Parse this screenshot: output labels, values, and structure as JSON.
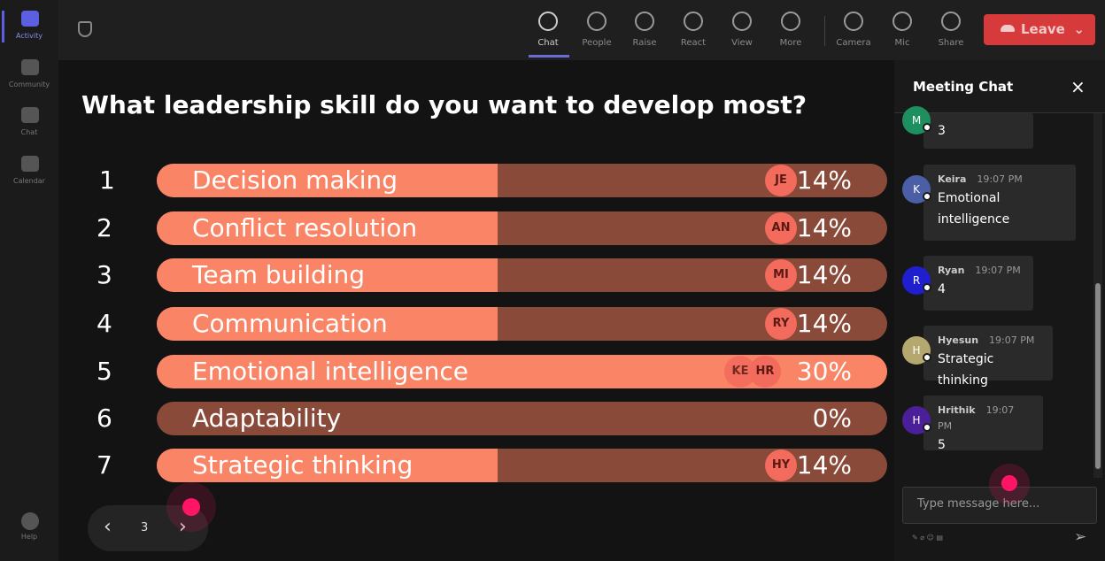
{
  "sidebar": {
    "items": [
      "Activity",
      "Community",
      "Chat",
      "Calendar"
    ],
    "help": "Help"
  },
  "toolbar": {
    "items": [
      "Chat",
      "People",
      "Raise",
      "React",
      "View",
      "More",
      "Camera",
      "Mic",
      "Share"
    ],
    "leave": "Leave"
  },
  "poll": {
    "question": "What leadership skill do you want to develop most?",
    "options": [
      {
        "rank": "1",
        "label": "Decision making",
        "value": 14,
        "value_label": "14%",
        "voters": [
          "JE"
        ]
      },
      {
        "rank": "2",
        "label": "Conflict resolution",
        "value": 14,
        "value_label": "14%",
        "voters": [
          "AN"
        ]
      },
      {
        "rank": "3",
        "label": "Team building",
        "value": 14,
        "value_label": "14%",
        "voters": [
          "MI"
        ]
      },
      {
        "rank": "4",
        "label": "Communication",
        "value": 14,
        "value_label": "14%",
        "voters": [
          "RY"
        ]
      },
      {
        "rank": "5",
        "label": "Emotional intelligence",
        "value": 30,
        "value_label": "30%",
        "voters": [
          "KE",
          "HR"
        ]
      },
      {
        "rank": "6",
        "label": "Adaptability",
        "value": 0,
        "value_label": "0%",
        "voters": []
      },
      {
        "rank": "7",
        "label": "Strategic thinking",
        "value": 14,
        "value_label": "14%",
        "voters": [
          "HY"
        ]
      }
    ],
    "page": "3"
  },
  "chat": {
    "title": "Meeting Chat",
    "messages": [
      {
        "initial": "M",
        "text": "3"
      },
      {
        "initial": "K",
        "sender": "Keira",
        "time": "19:07 PM",
        "text": "Emotional intelligence"
      },
      {
        "initial": "R",
        "sender": "Ryan",
        "time": "19:07 PM",
        "text": "4"
      },
      {
        "initial": "H",
        "sender": "Hyesun",
        "time": "19:07 PM",
        "text": "Strategic thinking"
      },
      {
        "initial": "H",
        "sender": "Hrithik",
        "time": "19:07 PM",
        "text": "5"
      }
    ],
    "placeholder": "Type message here..."
  }
}
